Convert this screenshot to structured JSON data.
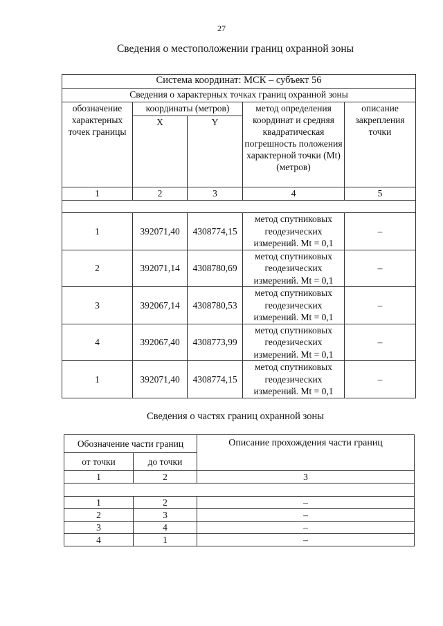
{
  "page_number": "27",
  "title1": "Сведения о местоположении границ охранной зоны",
  "table1": {
    "system": "Система координат: МСК – субъект 56",
    "section": "Сведения о характерных точках границ охранной зоны",
    "headers": {
      "designation": "обозначение характерных точек границы",
      "coords": "координаты (метров)",
      "x": "X",
      "y": "Y",
      "method": "метод определения координат и средняя квадратическая погрешность положения характерной точки (Mt) (метров)",
      "description": "описание закрепления точки"
    },
    "col_numbers": [
      "1",
      "2",
      "3",
      "4",
      "5"
    ],
    "rows": [
      {
        "point": "1",
        "x": "392071,40",
        "y": "4308774,15",
        "method": "метод спутниковых геодезических измерений. Mt = 0,1",
        "desc": "–"
      },
      {
        "point": "2",
        "x": "392071,14",
        "y": "4308780,69",
        "method": "метод спутниковых геодезических измерений. Mt = 0,1",
        "desc": "–"
      },
      {
        "point": "3",
        "x": "392067,14",
        "y": "4308780,53",
        "method": "метод спутниковых геодезических измерений. Mt = 0,1",
        "desc": "–"
      },
      {
        "point": "4",
        "x": "392067,40",
        "y": "4308773,99",
        "method": "метод спутниковых геодезических измерений. Mt = 0,1",
        "desc": "–"
      },
      {
        "point": "1",
        "x": "392071,40",
        "y": "4308774,15",
        "method": "метод спутниковых геодезических измерений. Mt = 0,1",
        "desc": "–"
      }
    ]
  },
  "title2": "Сведения о частях границ охранной зоны",
  "table2": {
    "headers": {
      "designation": "Обозначение части границ",
      "from": "от точки",
      "to": "до точки",
      "description": "Описание прохождения части границ"
    },
    "col_numbers": [
      "1",
      "2",
      "3"
    ],
    "rows": [
      {
        "from": "1",
        "to": "2",
        "desc": "–"
      },
      {
        "from": "2",
        "to": "3",
        "desc": "–"
      },
      {
        "from": "3",
        "to": "4",
        "desc": "–"
      },
      {
        "from": "4",
        "to": "1",
        "desc": "–"
      }
    ]
  }
}
